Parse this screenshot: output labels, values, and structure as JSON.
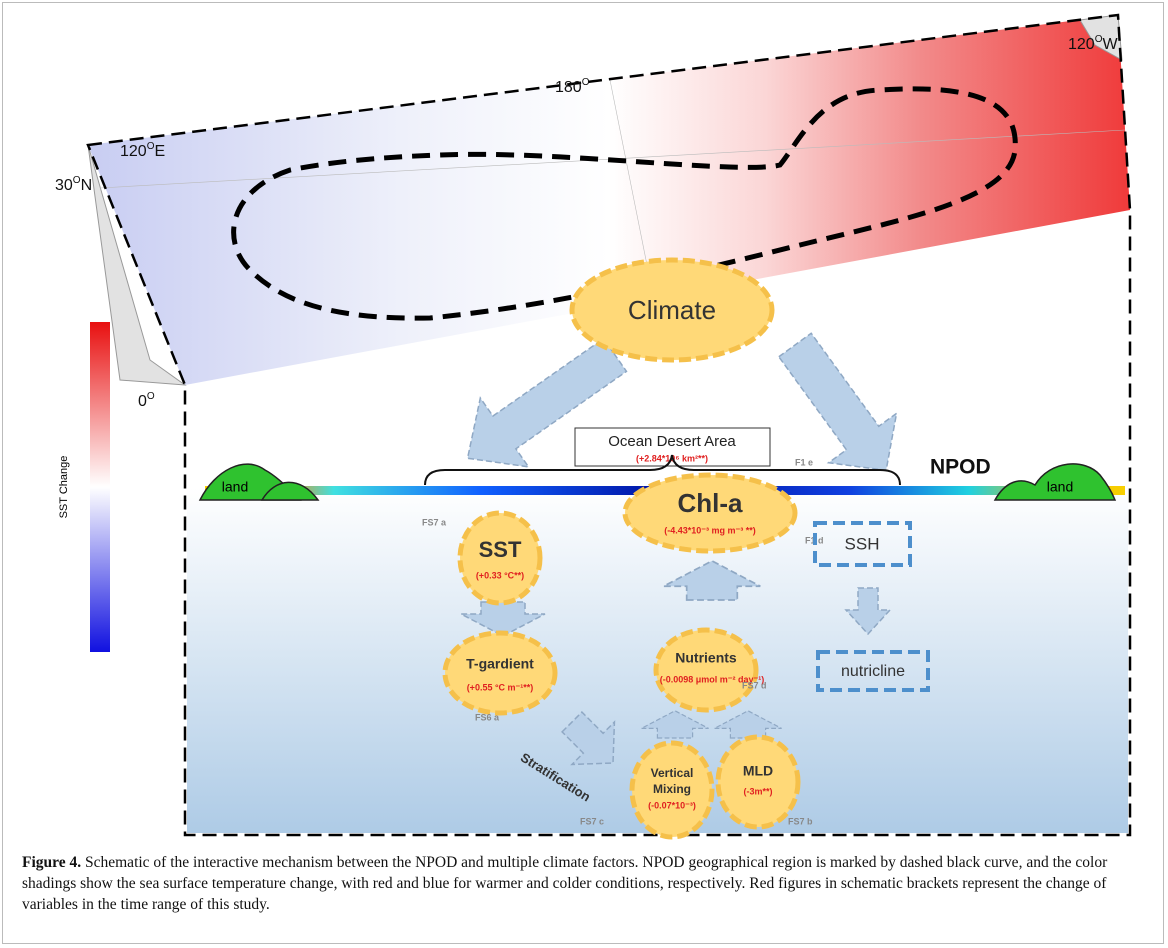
{
  "map": {
    "lon_labels": [
      {
        "deg": "120",
        "sup": "O",
        "dir": "E"
      },
      {
        "deg": "180",
        "sup": "O",
        "dir": ""
      },
      {
        "deg": "120",
        "sup": "O",
        "dir": "W"
      }
    ],
    "lat_labels": [
      {
        "deg": "30",
        "sup": "O",
        "dir": "N"
      },
      {
        "deg": "0",
        "sup": "O",
        "dir": ""
      }
    ],
    "colorbar_label": "SST Change"
  },
  "schematic": {
    "climate": "Climate",
    "ocean_desert": {
      "title": "Ocean Desert Area",
      "value": "(+2.84*10⁶ km²**)",
      "ref": "F1 e"
    },
    "npod": "NPOD",
    "land_left": "land",
    "land_right": "land",
    "sst": {
      "title": "SST",
      "value": "(+0.33 °C**)",
      "ref": "FS7 a"
    },
    "chla": {
      "title": "Chl-a",
      "value": "(-4.43*10⁻³ mg m⁻³ **)",
      "ref": "F1 d"
    },
    "ssh": "SSH",
    "nutricline": "nutricline",
    "tgradient": {
      "title": "T-gardient",
      "value": "(+0.55 °C m⁻¹**)",
      "ref": "FS6 a"
    },
    "nutrients": {
      "title": "Nutrients",
      "value": "(-0.0098 μmol m⁻² day⁻¹)",
      "ref": "FS7 d"
    },
    "stratification": "Stratification",
    "mixing": {
      "title_1": "Vertical",
      "title_2": "Mixing",
      "value": "(-0.07*10⁻³)",
      "ref": "FS7 c"
    },
    "mld": {
      "title": "MLD",
      "value": "(-3m**)",
      "ref": "FS7 b"
    }
  },
  "caption": {
    "label": "Figure 4.",
    "text": "Schematic of the interactive mechanism between the NPOD and multiple climate factors. NPOD geographical region is marked by dashed black curve, and the color shadings show the sea surface temperature change, with red and blue for warmer and colder conditions, respectively. Red figures in schematic brackets represent the change of variables in the time range of this study."
  }
}
